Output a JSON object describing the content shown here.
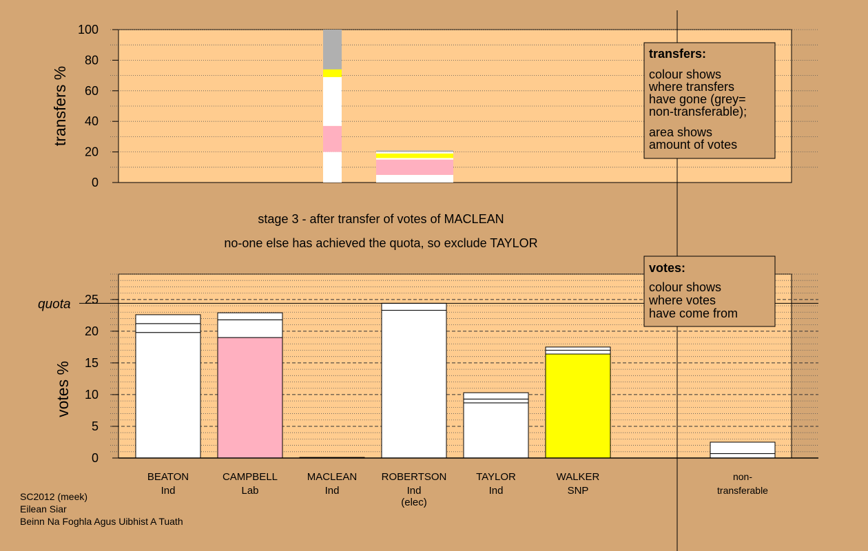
{
  "colors": {
    "background": "#d4a674",
    "plot_background": "#ffcc8f",
    "white": "#ffffff",
    "pink": "#ffb0c0",
    "yellow": "#ffff00",
    "grey": "#b0b0b0"
  },
  "headline": {
    "stage": "stage 3 - after transfer of votes of MACLEAN",
    "action": "no-one else has achieved the quota, so exclude TAYLOR"
  },
  "transfers_legend": {
    "title": "transfers:",
    "lines1": [
      "colour shows",
      "where transfers",
      "have gone (grey=",
      "non-transferable);"
    ],
    "lines2": [
      "area shows",
      "amount of votes"
    ]
  },
  "votes_legend": {
    "title": "votes:",
    "lines": [
      "colour shows",
      "where votes",
      "have come from"
    ]
  },
  "quota_label": "quota",
  "footer": [
    "SC2012 (meek)",
    "Eilean Siar",
    "Beinn Na Foghla Agus Uibhist A Tuath"
  ],
  "candidates": [
    {
      "name": "BEATON",
      "party": "Ind",
      "note": ""
    },
    {
      "name": "CAMPBELL",
      "party": "Lab",
      "note": ""
    },
    {
      "name": "MACLEAN",
      "party": "Ind",
      "note": ""
    },
    {
      "name": "ROBERTSON",
      "party": "Ind",
      "note": "(elec)"
    },
    {
      "name": "TAYLOR",
      "party": "Ind",
      "note": ""
    },
    {
      "name": "WALKER",
      "party": "SNP",
      "note": ""
    },
    {
      "name": "non-",
      "party": "transferable",
      "note": ""
    }
  ],
  "chart_data": [
    {
      "type": "bar",
      "ylabel": "transfers %",
      "ylim": [
        0,
        100
      ],
      "yticks": [
        0,
        20,
        40,
        60,
        80,
        100
      ],
      "grid": "dotted every 10",
      "bars": [
        {
          "position": "MACLEAN column",
          "segments": [
            {
              "color": "white",
              "from": 0,
              "to": 20
            },
            {
              "color": "pink",
              "from": 20,
              "to": 37
            },
            {
              "color": "white",
              "from": 37,
              "to": 69
            },
            {
              "color": "yellow",
              "from": 69,
              "to": 74
            },
            {
              "color": "grey",
              "from": 74,
              "to": 100
            }
          ]
        },
        {
          "position": "ROBERTSON column (wide)",
          "segments": [
            {
              "color": "white",
              "from": 0,
              "to": 5
            },
            {
              "color": "pink",
              "from": 5,
              "to": 15
            },
            {
              "color": "white",
              "from": 15,
              "to": 16
            },
            {
              "color": "yellow",
              "from": 16,
              "to": 19
            },
            {
              "color": "white",
              "from": 19,
              "to": 20
            },
            {
              "color": "grey",
              "from": 20,
              "to": 21
            }
          ]
        }
      ]
    },
    {
      "type": "bar",
      "ylabel": "votes %",
      "ylim": [
        0,
        29
      ],
      "yticks": [
        0,
        5,
        10,
        15,
        20,
        25
      ],
      "quota": 24.4,
      "grid": "dashed every 5, dotted every 1",
      "categories": [
        "BEATON",
        "CAMPBELL",
        "MACLEAN",
        "ROBERTSON",
        "TAYLOR",
        "WALKER",
        "non-transferable"
      ],
      "bars": [
        {
          "name": "BEATON",
          "segments": [
            {
              "color": "white",
              "to": 19.8
            },
            {
              "color": "white",
              "to": 21.2
            },
            {
              "color": "white",
              "to": 22.6
            }
          ]
        },
        {
          "name": "CAMPBELL",
          "segments": [
            {
              "color": "pink",
              "to": 19.0
            },
            {
              "color": "white",
              "to": 21.8
            },
            {
              "color": "white",
              "to": 22.9
            }
          ]
        },
        {
          "name": "MACLEAN",
          "segments": [
            {
              "color": "white",
              "to": 0.1
            }
          ]
        },
        {
          "name": "ROBERTSON",
          "segments": [
            {
              "color": "white",
              "to": 23.3
            },
            {
              "color": "white",
              "to": 24.4
            }
          ]
        },
        {
          "name": "TAYLOR",
          "segments": [
            {
              "color": "white",
              "to": 8.7
            },
            {
              "color": "white",
              "to": 9.3
            },
            {
              "color": "white",
              "to": 10.3
            }
          ]
        },
        {
          "name": "WALKER",
          "segments": [
            {
              "color": "yellow",
              "to": 16.4
            },
            {
              "color": "white",
              "to": 17.0
            },
            {
              "color": "white",
              "to": 17.5
            }
          ]
        },
        {
          "name": "non-transferable",
          "segments": [
            {
              "color": "white",
              "to": 0.7
            },
            {
              "color": "white",
              "to": 2.5
            }
          ]
        }
      ]
    }
  ]
}
